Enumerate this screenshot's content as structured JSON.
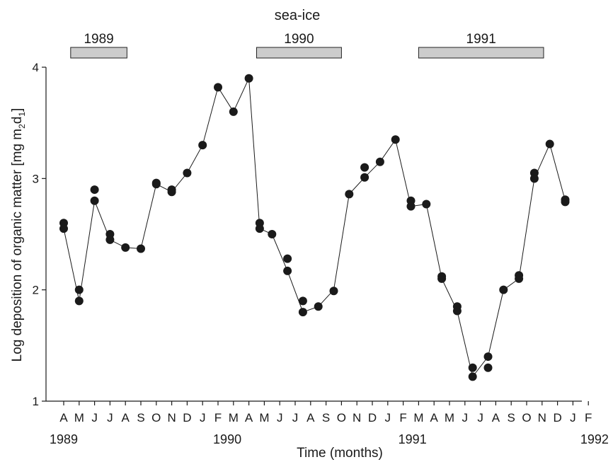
{
  "chart_data": {
    "type": "scatter",
    "title": "sea-ice",
    "xlabel": "Time (months)",
    "ylabel_main": "Log deposition of organic matter [mg m",
    "ylabel_sub1": "2",
    "ylabel_mid": "d",
    "ylabel_sub2": "1",
    "ylabel_end": "]",
    "ylim": [
      1,
      4
    ],
    "y_ticks": [
      "1",
      "2",
      "3",
      "4"
    ],
    "y_tick_values": [
      1,
      2,
      3,
      4
    ],
    "x_month_labels": [
      "A",
      "M",
      "J",
      "J",
      "A",
      "S",
      "O",
      "N",
      "D",
      "J",
      "F",
      "M",
      "A",
      "M",
      "J",
      "J",
      "A",
      "S",
      "O",
      "N",
      "D",
      "J",
      "F",
      "M",
      "A",
      "M",
      "J",
      "J",
      "A",
      "S",
      "O",
      "N",
      "D",
      "J",
      "F"
    ],
    "x_year_labels": [
      {
        "label": "1989",
        "month_index": 0
      },
      {
        "label": "1990",
        "month_index": 10.6
      },
      {
        "label": "1991",
        "month_index": 22.6
      },
      {
        "label": "1992",
        "month_index": 34.4
      }
    ],
    "sea_ice": [
      {
        "label": "1989",
        "start": 0.45,
        "end": 4.1
      },
      {
        "label": "1990",
        "start": 12.5,
        "end": 18.0
      },
      {
        "label": "1991",
        "start": 23.0,
        "end": 31.1
      }
    ],
    "line_series": [
      [
        0,
        2.55
      ],
      [
        1,
        1.9
      ],
      [
        2,
        2.8
      ],
      [
        3,
        2.45
      ],
      [
        4,
        2.38
      ],
      [
        5,
        2.37
      ],
      [
        6,
        2.95
      ],
      [
        7,
        2.88
      ],
      [
        8,
        3.05
      ],
      [
        9,
        3.3
      ],
      [
        10,
        3.82
      ],
      [
        11,
        3.6
      ],
      [
        12,
        3.9
      ],
      [
        12.7,
        2.55
      ],
      [
        13.5,
        2.5
      ],
      [
        14.5,
        2.17
      ],
      [
        15.5,
        1.8
      ],
      [
        16.5,
        1.85
      ],
      [
        17.5,
        2.0
      ],
      [
        18.5,
        2.86
      ],
      [
        19.5,
        3.01
      ],
      [
        20.5,
        3.15
      ],
      [
        21.5,
        3.35
      ],
      [
        22.5,
        2.75
      ],
      [
        23.5,
        2.77
      ],
      [
        24.5,
        2.1
      ],
      [
        25.5,
        1.81
      ],
      [
        26.5,
        1.22
      ],
      [
        27.5,
        1.4
      ],
      [
        28.5,
        2.0
      ],
      [
        29.5,
        2.1
      ],
      [
        30.5,
        3.0
      ],
      [
        31.5,
        3.31
      ],
      [
        32.5,
        2.8
      ]
    ],
    "points": [
      [
        0,
        2.6
      ],
      [
        0,
        2.55
      ],
      [
        1,
        2.0
      ],
      [
        1,
        1.9
      ],
      [
        2,
        2.9
      ],
      [
        2,
        2.8
      ],
      [
        3,
        2.5
      ],
      [
        3,
        2.45
      ],
      [
        4,
        2.38
      ],
      [
        5,
        2.37
      ],
      [
        6,
        2.96
      ],
      [
        6,
        2.95
      ],
      [
        7,
        2.9
      ],
      [
        7,
        2.88
      ],
      [
        8,
        3.05
      ],
      [
        9,
        3.3
      ],
      [
        10,
        3.82
      ],
      [
        11,
        3.6
      ],
      [
        12,
        3.9
      ],
      [
        12.7,
        2.6
      ],
      [
        12.7,
        2.55
      ],
      [
        13.5,
        2.5
      ],
      [
        14.5,
        2.28
      ],
      [
        14.5,
        2.17
      ],
      [
        15.5,
        1.9
      ],
      [
        15.5,
        1.8
      ],
      [
        16.5,
        1.85
      ],
      [
        17.5,
        1.99
      ],
      [
        18.5,
        2.86
      ],
      [
        19.5,
        3.1
      ],
      [
        19.5,
        3.01
      ],
      [
        20.5,
        3.15
      ],
      [
        21.5,
        3.35
      ],
      [
        22.5,
        2.8
      ],
      [
        22.5,
        2.75
      ],
      [
        23.5,
        2.77
      ],
      [
        24.5,
        2.12
      ],
      [
        24.5,
        2.1
      ],
      [
        25.5,
        1.85
      ],
      [
        25.5,
        1.81
      ],
      [
        26.5,
        1.3
      ],
      [
        26.5,
        1.22
      ],
      [
        27.5,
        1.3
      ],
      [
        27.5,
        1.4
      ],
      [
        28.5,
        2.0
      ],
      [
        29.5,
        2.13
      ],
      [
        29.5,
        2.1
      ],
      [
        30.5,
        3.05
      ],
      [
        30.5,
        3.0
      ],
      [
        31.5,
        3.31
      ],
      [
        32.5,
        2.81
      ],
      [
        32.5,
        2.79
      ]
    ],
    "grid": false
  }
}
